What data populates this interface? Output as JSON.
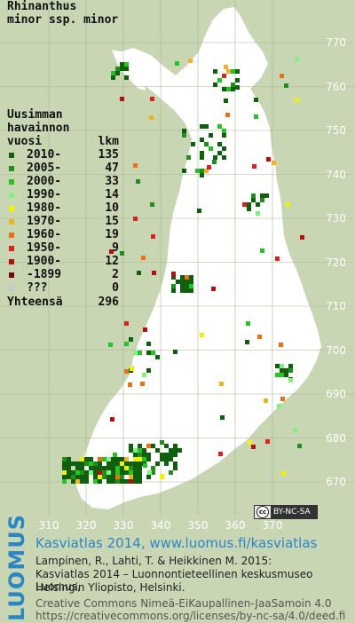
{
  "title_lines": [
    "Rhinanthus",
    "minor ssp. minor"
  ],
  "legend": {
    "heading": [
      "Uusimman",
      "havainnon"
    ],
    "col_year": "vuosi",
    "col_count": "lkm",
    "rows": [
      {
        "label": "2010-",
        "count": "135",
        "color": "#0f5f0f"
      },
      {
        "label": "2005-",
        "count": "47",
        "color": "#1f8f1f"
      },
      {
        "label": "2000-",
        "count": "33",
        "color": "#24c424"
      },
      {
        "label": "1990-",
        "count": "14",
        "color": "#7ff27f"
      },
      {
        "label": "1980-",
        "count": "10",
        "color": "#f5f000"
      },
      {
        "label": "1970-",
        "count": "15",
        "color": "#f3b21f"
      },
      {
        "label": "1960-",
        "count": "19",
        "color": "#ef7010"
      },
      {
        "label": "1950-",
        "count": "9",
        "color": "#e02020"
      },
      {
        "label": "1900-",
        "count": "12",
        "color": "#b41010"
      },
      {
        "label": "-1899",
        "count": "2",
        "color": "#780808"
      },
      {
        "label": "???",
        "count": "0",
        "color": "#c8c8c8"
      }
    ],
    "total_label": "Yhteensä",
    "total_count": "296"
  },
  "axes": {
    "y_ticks": [
      "770",
      "760",
      "750",
      "740",
      "730",
      "720",
      "710",
      "700",
      "690",
      "680",
      "670"
    ],
    "x_ticks": [
      "310",
      "320",
      "330",
      "340",
      "350",
      "360",
      "370"
    ]
  },
  "license_badge": {
    "icon": "cc",
    "text": "BY-NC-SA"
  },
  "footer": {
    "brand": "LUOMUS",
    "heading": "Kasviatlas 2014, www.luomus.fi/kasviatlas",
    "cite1": "Lampinen, R., Lahti, T. & Heikkinen M. 2015:",
    "cite2": "Kasviatlas 2014 – Luonnontieteellinen keskusmuseo Luomus,",
    "cite3": "Helsingin Yliopisto, Helsinki.",
    "lic1": "Creative Commons Nimeä-EiKaupallinen-JaaSamoin 4.0",
    "lic2": "https://creativecommons.org/licenses/by-nc-sa/4.0/deed.fi"
  },
  "colors": {
    "background": "#c8d6b4",
    "land": "#ffffff",
    "grid": "#a8b88f",
    "brand": "#2a86c5"
  },
  "grid_extent": {
    "x_min": 310,
    "x_max": 370,
    "y_min": 666,
    "y_max": 775
  }
}
